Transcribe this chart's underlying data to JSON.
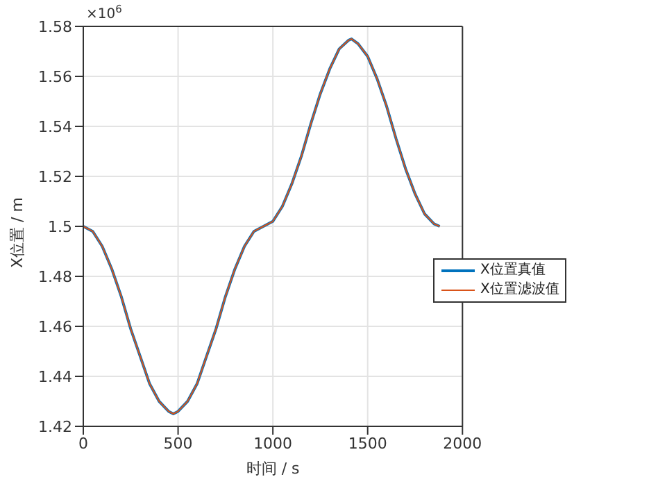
{
  "chart_data": {
    "type": "line",
    "xlabel": "时间 / s",
    "ylabel": "X位置 / m",
    "annotations": [
      "×10$^{6}$"
    ],
    "x": [
      0,
      50,
      100,
      150,
      200,
      250,
      300,
      350,
      400,
      450,
      475,
      500,
      550,
      600,
      650,
      700,
      750,
      800,
      850,
      900,
      950,
      1000,
      1050,
      1100,
      1150,
      1200,
      1250,
      1300,
      1350,
      1400,
      1415,
      1450,
      1500,
      1550,
      1600,
      1650,
      1700,
      1750,
      1800,
      1850,
      1880
    ],
    "series": [
      {
        "name": "X位置真值",
        "color": "#0072bd",
        "values": [
          1.5,
          1.498,
          1.492,
          1.483,
          1.472,
          1.459,
          1.448,
          1.437,
          1.43,
          1.426,
          1.425,
          1.426,
          1.43,
          1.437,
          1.448,
          1.459,
          1.472,
          1.483,
          1.492,
          1.498,
          1.5,
          1.502,
          1.508,
          1.517,
          1.528,
          1.541,
          1.553,
          1.563,
          1.571,
          1.5745,
          1.575,
          1.573,
          1.568,
          1.559,
          1.548,
          1.535,
          1.523,
          1.513,
          1.505,
          1.501,
          1.5
        ]
      },
      {
        "name": "X位置滤波值",
        "color": "#d95319",
        "values": [
          1.5,
          1.498,
          1.492,
          1.483,
          1.472,
          1.459,
          1.448,
          1.437,
          1.43,
          1.426,
          1.425,
          1.426,
          1.43,
          1.437,
          1.448,
          1.459,
          1.472,
          1.483,
          1.492,
          1.498,
          1.5,
          1.502,
          1.508,
          1.517,
          1.528,
          1.541,
          1.553,
          1.563,
          1.571,
          1.5745,
          1.575,
          1.573,
          1.568,
          1.559,
          1.548,
          1.535,
          1.523,
          1.513,
          1.505,
          1.501,
          1.5
        ]
      }
    ],
    "xlim": [
      0,
      2000
    ],
    "xticks": [
      0,
      500,
      1000,
      1500,
      2000
    ],
    "ylim": [
      1.42,
      1.58
    ],
    "yticks": [
      1.42,
      1.44,
      1.46,
      1.48,
      1.5,
      1.52,
      1.54,
      1.56,
      1.58
    ],
    "grid": true,
    "legend": "right",
    "marker": "none",
    "line_style": "solid"
  }
}
